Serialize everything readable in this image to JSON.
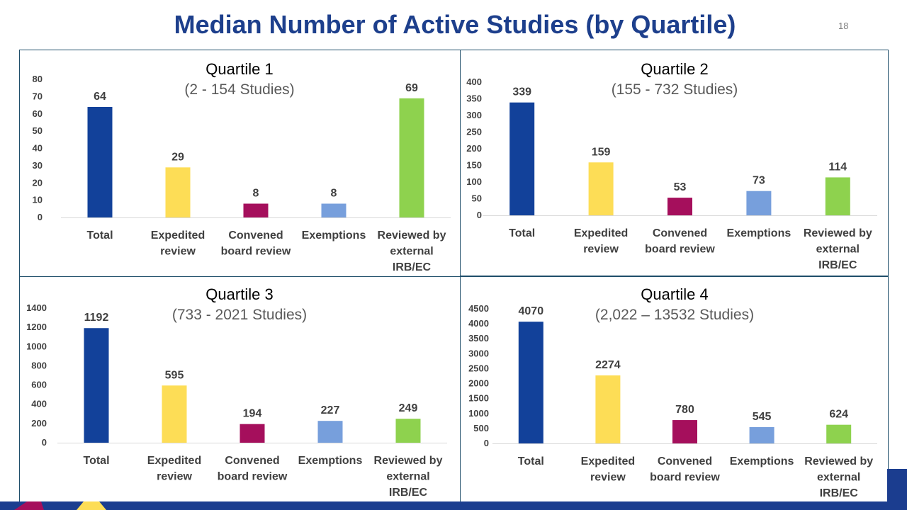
{
  "slide": {
    "title": "Median Number of Active Studies (by Quartile)",
    "page_number": "18"
  },
  "colors": {
    "title": "#1d3f8c",
    "Total": "#12419a",
    "Expedited review": "#fddd56",
    "Convened board review": "#a50f5c",
    "Exemptions": "#779fdc",
    "Reviewed by external IRB/EC": "#8ed24e",
    "footer_navy": "#1b3d8f",
    "footer_yellow": "#fddd56",
    "footer_magenta": "#a50f5c"
  },
  "chart_data": [
    {
      "type": "bar",
      "title": "Quartile 1",
      "subtitle": "(2 - 154 Studies)",
      "categories": [
        "Total",
        "Expedited review",
        "Convened board review",
        "Exemptions",
        "Reviewed by external IRB/EC"
      ],
      "category_labels": [
        [
          "Total"
        ],
        [
          "Expedited",
          "review"
        ],
        [
          "Convened",
          "board review"
        ],
        [
          "Exemptions"
        ],
        [
          "Reviewed by",
          "external",
          "IRB/EC"
        ]
      ],
      "values": [
        64,
        29,
        8,
        8,
        69
      ],
      "ylim": [
        0,
        80
      ],
      "yticks": [
        0,
        10,
        20,
        30,
        40,
        50,
        60,
        70,
        80
      ],
      "ytick_labels": [
        "0",
        "10",
        "20",
        "30",
        "40",
        "50",
        "60",
        "70",
        "80"
      ],
      "value_labels": [
        "64",
        "29",
        "8",
        "8",
        "69"
      ],
      "xlabel": "",
      "ylabel": "",
      "legend": "none",
      "grid": false
    },
    {
      "type": "bar",
      "title": "Quartile 2",
      "subtitle": "(155 - 732 Studies)",
      "categories": [
        "Total",
        "Expedited review",
        "Convened board review",
        "Exemptions",
        "Reviewed by external IRB/EC"
      ],
      "category_labels": [
        [
          "Total"
        ],
        [
          "Expedited",
          "review"
        ],
        [
          "Convened",
          "board review"
        ],
        [
          "Exemptions"
        ],
        [
          "Reviewed by",
          "external",
          "IRB/EC"
        ]
      ],
      "values": [
        339,
        159,
        53,
        73,
        114
      ],
      "ylim": [
        0,
        400
      ],
      "yticks": [
        0,
        50,
        100,
        150,
        200,
        250,
        300,
        350,
        400
      ],
      "ytick_labels": [
        "0",
        "50",
        "100",
        "150",
        "200",
        "250",
        "300",
        "350",
        "400"
      ],
      "value_labels": [
        "339",
        "159",
        "53",
        "73",
        "114"
      ],
      "xlabel": "",
      "ylabel": "",
      "legend": "none",
      "grid": false
    },
    {
      "type": "bar",
      "title": "Quartile 3",
      "subtitle": "(733 - 2021 Studies)",
      "categories": [
        "Total",
        "Expedited review",
        "Convened board review",
        "Exemptions",
        "Reviewed by external IRB/EC"
      ],
      "category_labels": [
        [
          "Total"
        ],
        [
          "Expedited",
          "review"
        ],
        [
          "Convened",
          "board review"
        ],
        [
          "Exemptions"
        ],
        [
          "Reviewed by",
          "external",
          "IRB/EC"
        ]
      ],
      "values": [
        1192,
        595,
        194,
        227,
        249
      ],
      "ylim": [
        0,
        1400
      ],
      "yticks": [
        0,
        200,
        400,
        600,
        800,
        1000,
        1200,
        1400
      ],
      "ytick_labels": [
        "0",
        "200",
        "400",
        "600",
        "800",
        "1000",
        "1200",
        "1400"
      ],
      "value_labels": [
        "1192",
        "595",
        "194",
        "227",
        "249"
      ],
      "xlabel": "",
      "ylabel": "",
      "legend": "none",
      "grid": false
    },
    {
      "type": "bar",
      "title": "Quartile 4",
      "subtitle": "(2,022 – 13532 Studies)",
      "categories": [
        "Total",
        "Expedited review",
        "Convened board review",
        "Exemptions",
        "Reviewed by external IRB/EC"
      ],
      "category_labels": [
        [
          "Total"
        ],
        [
          "Expedited",
          "review"
        ],
        [
          "Convened",
          "board review"
        ],
        [
          "Exemptions"
        ],
        [
          "Reviewed by",
          "external",
          "IRB/EC"
        ]
      ],
      "values": [
        4070,
        2274,
        780,
        545,
        624
      ],
      "ylim": [
        0,
        4500
      ],
      "yticks": [
        0,
        500,
        1000,
        1500,
        2000,
        2500,
        3000,
        3500,
        4000,
        4500
      ],
      "ytick_labels": [
        "0",
        "500",
        "1000",
        "1500",
        "2000",
        "2500",
        "3000",
        "3500",
        "4000",
        "4500"
      ],
      "value_labels": [
        "4070",
        "2274",
        "780",
        "545",
        "624"
      ],
      "xlabel": "",
      "ylabel": "",
      "legend": "none",
      "grid": false
    }
  ]
}
